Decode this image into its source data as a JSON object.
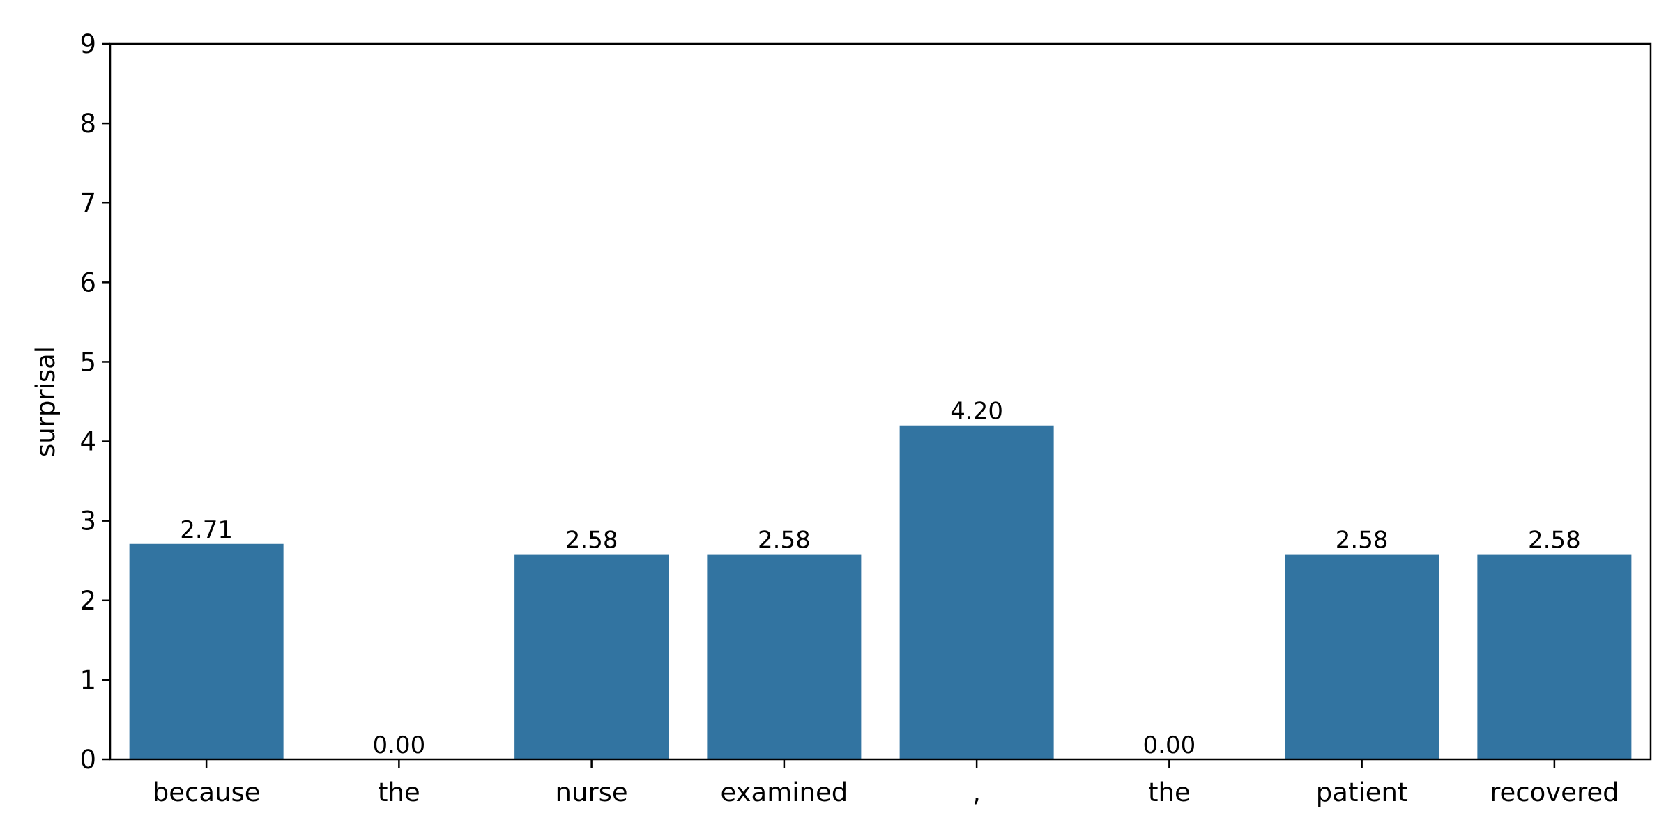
{
  "chart_data": {
    "type": "bar",
    "categories": [
      "because",
      "the",
      "nurse",
      "examined",
      ",",
      "the",
      "patient",
      "recovered"
    ],
    "values": [
      2.71,
      0.0,
      2.58,
      2.58,
      4.2,
      0.0,
      2.58,
      2.58
    ],
    "data_labels": [
      "2.71",
      "0.00",
      "2.58",
      "2.58",
      "4.20",
      "0.00",
      "2.58",
      "2.58"
    ],
    "xlabel": "",
    "ylabel": "surprisal",
    "ylim": [
      0,
      9
    ],
    "yticks": [
      "0",
      "1",
      "2",
      "3",
      "4",
      "5",
      "6",
      "7",
      "8",
      "9"
    ],
    "grid": false,
    "legend": "none",
    "bar_color": "#3274a1"
  }
}
